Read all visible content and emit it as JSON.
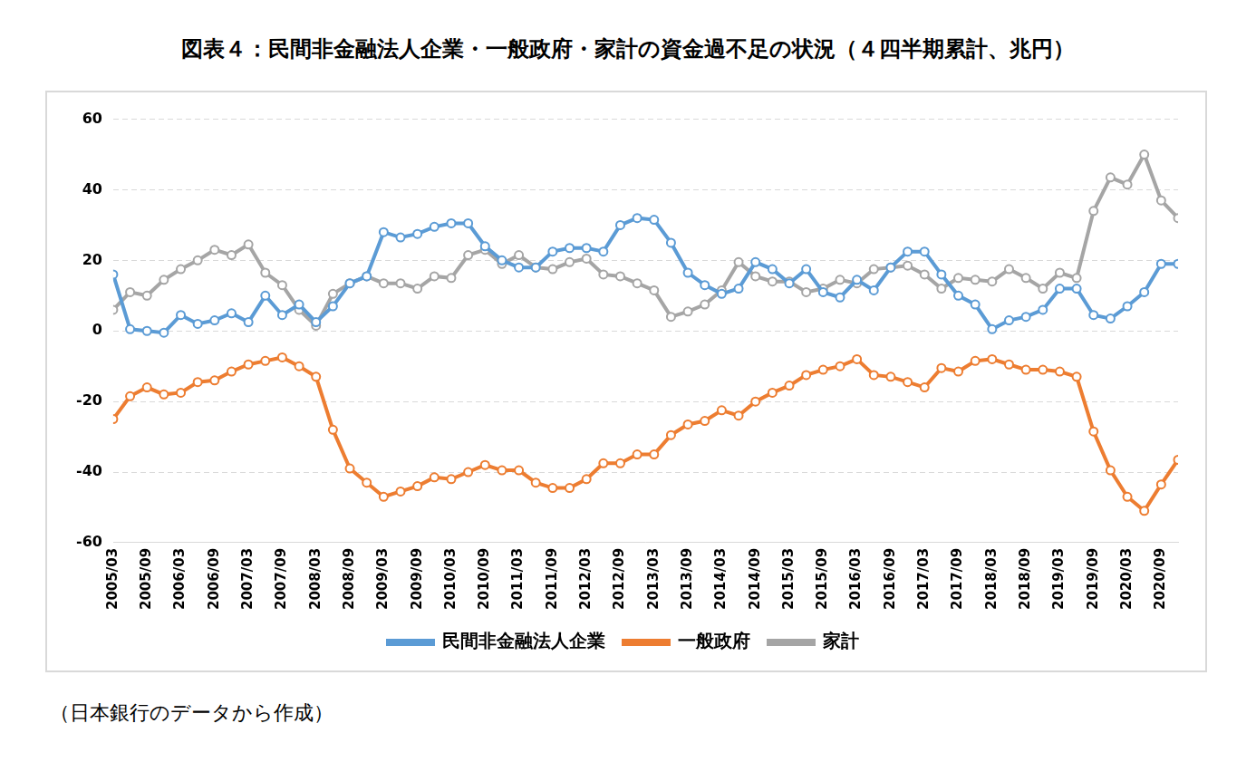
{
  "chart_data": {
    "type": "line",
    "title": "図表４：民間非金融法人企業・一般政府・家計の資金過不足の状況（４四半期累計、兆円）",
    "note": "（日本銀行のデータから作成）",
    "categories": [
      "2005/03",
      null,
      "2005/09",
      null,
      "2006/03",
      null,
      "2006/09",
      null,
      "2007/03",
      null,
      "2007/09",
      null,
      "2008/03",
      null,
      "2008/09",
      null,
      "2009/03",
      null,
      "2009/09",
      null,
      "2010/03",
      null,
      "2010/09",
      null,
      "2011/03",
      null,
      "2011/09",
      null,
      "2012/03",
      null,
      "2012/09",
      null,
      "2013/03",
      null,
      "2013/09",
      null,
      "2014/03",
      null,
      "2014/09",
      null,
      "2015/03",
      null,
      "2015/09",
      null,
      "2016/03",
      null,
      "2016/09",
      null,
      "2017/03",
      null,
      "2017/09",
      null,
      "2018/03",
      null,
      "2018/09",
      null,
      "2019/03",
      null,
      "2019/09",
      null,
      "2020/03",
      null,
      "2020/09",
      null
    ],
    "series": [
      {
        "name": "民間非金融法人企業",
        "color": "#5b9bd5",
        "marker": "circle",
        "values": [
          16,
          0.5,
          0,
          -0.5,
          4.5,
          2,
          3,
          5,
          2.5,
          10,
          4.5,
          7.5,
          2.5,
          7,
          13.5,
          15.5,
          28,
          26.5,
          27.5,
          29.5,
          30.5,
          30.5,
          24,
          20,
          18,
          18,
          22.5,
          23.5,
          23.5,
          22.5,
          30,
          32,
          31.5,
          25,
          16.5,
          13,
          10.5,
          12,
          19.5,
          17.5,
          13.5,
          17.5,
          11,
          9.5,
          14.5,
          11.5,
          18,
          22.5,
          22.5,
          16,
          10,
          7.5,
          0.5,
          3,
          4,
          6,
          12,
          12,
          4.5,
          3.5,
          7,
          11,
          19,
          19
        ]
      },
      {
        "name": "一般政府",
        "color": "#ed7d31",
        "marker": "circle",
        "values": [
          -25,
          -18.5,
          -16,
          -18,
          -17.5,
          -14.5,
          -14,
          -11.5,
          -9.5,
          -8.5,
          -7.5,
          -10,
          -13,
          -28,
          -39,
          -43,
          -47,
          -45.5,
          -44,
          -41.5,
          -42,
          -40,
          -38,
          -39.5,
          -39.5,
          -43,
          -44.5,
          -44.5,
          -42,
          -37.5,
          -37.5,
          -35,
          -35,
          -29.5,
          -26.5,
          -25.5,
          -22.5,
          -24,
          -20,
          -17.5,
          -15.5,
          -12.5,
          -11,
          -10,
          -8,
          -12.5,
          -13,
          -14.5,
          -16,
          -10.5,
          -11.5,
          -8.5,
          -8,
          -9.5,
          -11,
          -11,
          -11.5,
          -13,
          -28.5,
          -39.5,
          -47,
          -51,
          -43.5,
          -36.5
        ]
      },
      {
        "name": "家計",
        "color": "#a5a5a5",
        "marker": "circle",
        "values": [
          6,
          11,
          10,
          14.5,
          17.5,
          20,
          23,
          21.5,
          24.5,
          16.5,
          13,
          6,
          1.5,
          10.5,
          13.5,
          15.5,
          13.5,
          13.5,
          12,
          15.5,
          15,
          21.5,
          23,
          19,
          21.5,
          18,
          17.5,
          19.5,
          20.5,
          16,
          15.5,
          13.5,
          11.5,
          4,
          5.5,
          7.5,
          11.5,
          19.5,
          15.5,
          14,
          14,
          11,
          12,
          14.5,
          13.5,
          17.5,
          18,
          18.5,
          16,
          12,
          15,
          14.5,
          14,
          17.5,
          15,
          12,
          16.5,
          15,
          34,
          43.5,
          41.5,
          50,
          37,
          32
        ]
      }
    ],
    "ylim": [
      -60,
      60
    ],
    "yticks": [
      -60,
      -40,
      -20,
      0,
      20,
      40,
      60
    ],
    "grid": true,
    "legend": "bottom"
  }
}
